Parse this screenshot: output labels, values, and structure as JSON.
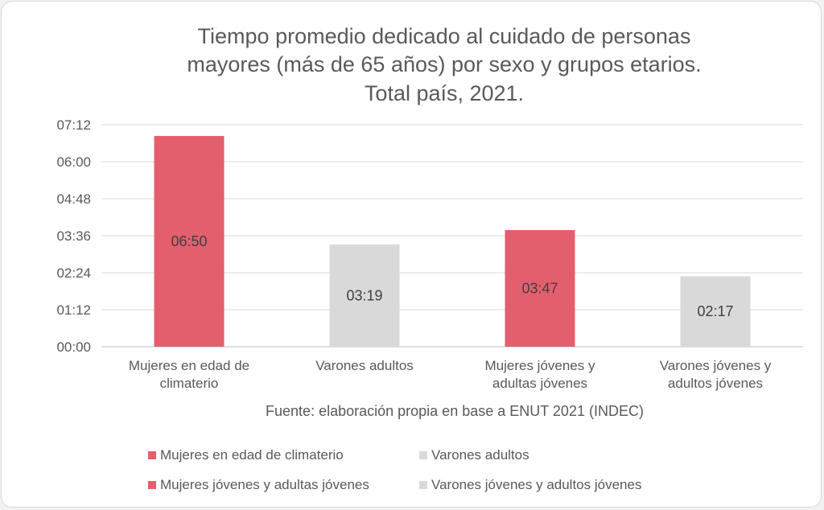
{
  "chart_data": {
    "type": "bar",
    "title_lines": [
      "Tiempo promedio dedicado al  cuidado de personas",
      "mayores (más de 65 años) por sexo y grupos etarios.",
      "Total país, 2021."
    ],
    "categories": [
      [
        "Mujeres en edad de",
        "climaterio"
      ],
      [
        "Varones adultos"
      ],
      [
        "Mujeres jóvenes y",
        "adultas jóvenes"
      ],
      [
        "Varones jóvenes y",
        "adultos jóvenes"
      ]
    ],
    "values_minutes": [
      410,
      199,
      227,
      137
    ],
    "value_labels": [
      "06:50",
      "03:19",
      "03:47",
      "02:17"
    ],
    "bar_colors": [
      "#e45f6e",
      "#d9d9d9",
      "#e45f6e",
      "#d9d9d9"
    ],
    "y_ticks": [
      "00:00",
      "01:12",
      "02:24",
      "03:36",
      "04:48",
      "06:00",
      "07:12"
    ],
    "ylim_minutes": [
      0,
      432
    ],
    "grid": true,
    "source_note": "Fuente: elaboración propia en base a ENUT 2021 (INDEC)",
    "legend_position": "bottom",
    "legend": [
      {
        "label": "Mujeres en edad de climaterio",
        "color": "#e45f6e"
      },
      {
        "label": "Varones adultos",
        "color": "#d9d9d9"
      },
      {
        "label": "Mujeres jóvenes y adultas jóvenes",
        "color": "#e45f6e"
      },
      {
        "label": "Varones jóvenes y adultos jóvenes",
        "color": "#d9d9d9"
      }
    ]
  }
}
